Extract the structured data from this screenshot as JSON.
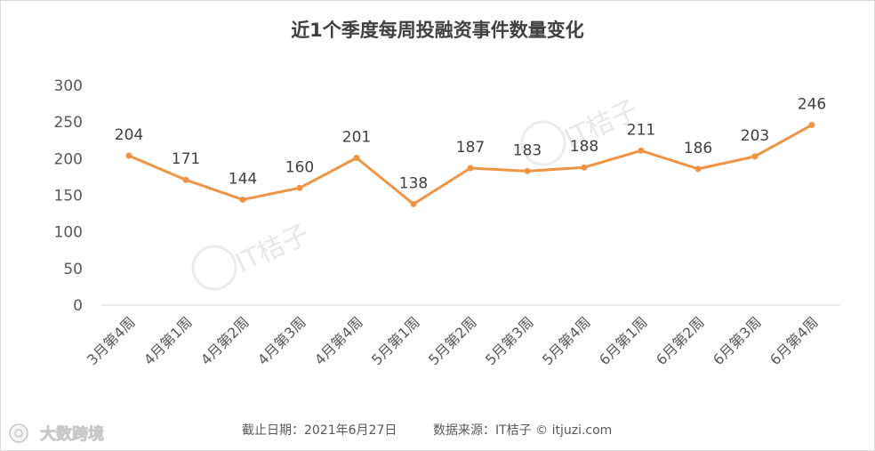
{
  "chart_data": {
    "type": "line",
    "title": "近1个季度每周投融资事件数量变化",
    "categories": [
      "3月第4周",
      "4月第1周",
      "4月第2周",
      "4月第3周",
      "4月第4周",
      "5月第1周",
      "5月第2周",
      "5月第3周",
      "5月第4周",
      "6月第1周",
      "6月第2周",
      "6月第3周",
      "6月第4周"
    ],
    "values": [
      204,
      171,
      144,
      160,
      201,
      138,
      187,
      183,
      188,
      211,
      186,
      203,
      246
    ],
    "ylim": [
      0,
      300
    ],
    "yticks": [
      0,
      50,
      100,
      150,
      200,
      250,
      300
    ],
    "grid": false,
    "legend": "none",
    "color": "#ed9445",
    "data_labels": true
  },
  "footer": {
    "date": "截止日期：2021年6月27日",
    "source": "数据来源：IT桔子 © itjuzi.com"
  },
  "watermark": {
    "text": "IT桔子",
    "brand": "大数跨境",
    "icon": "brand-logo-icon"
  }
}
